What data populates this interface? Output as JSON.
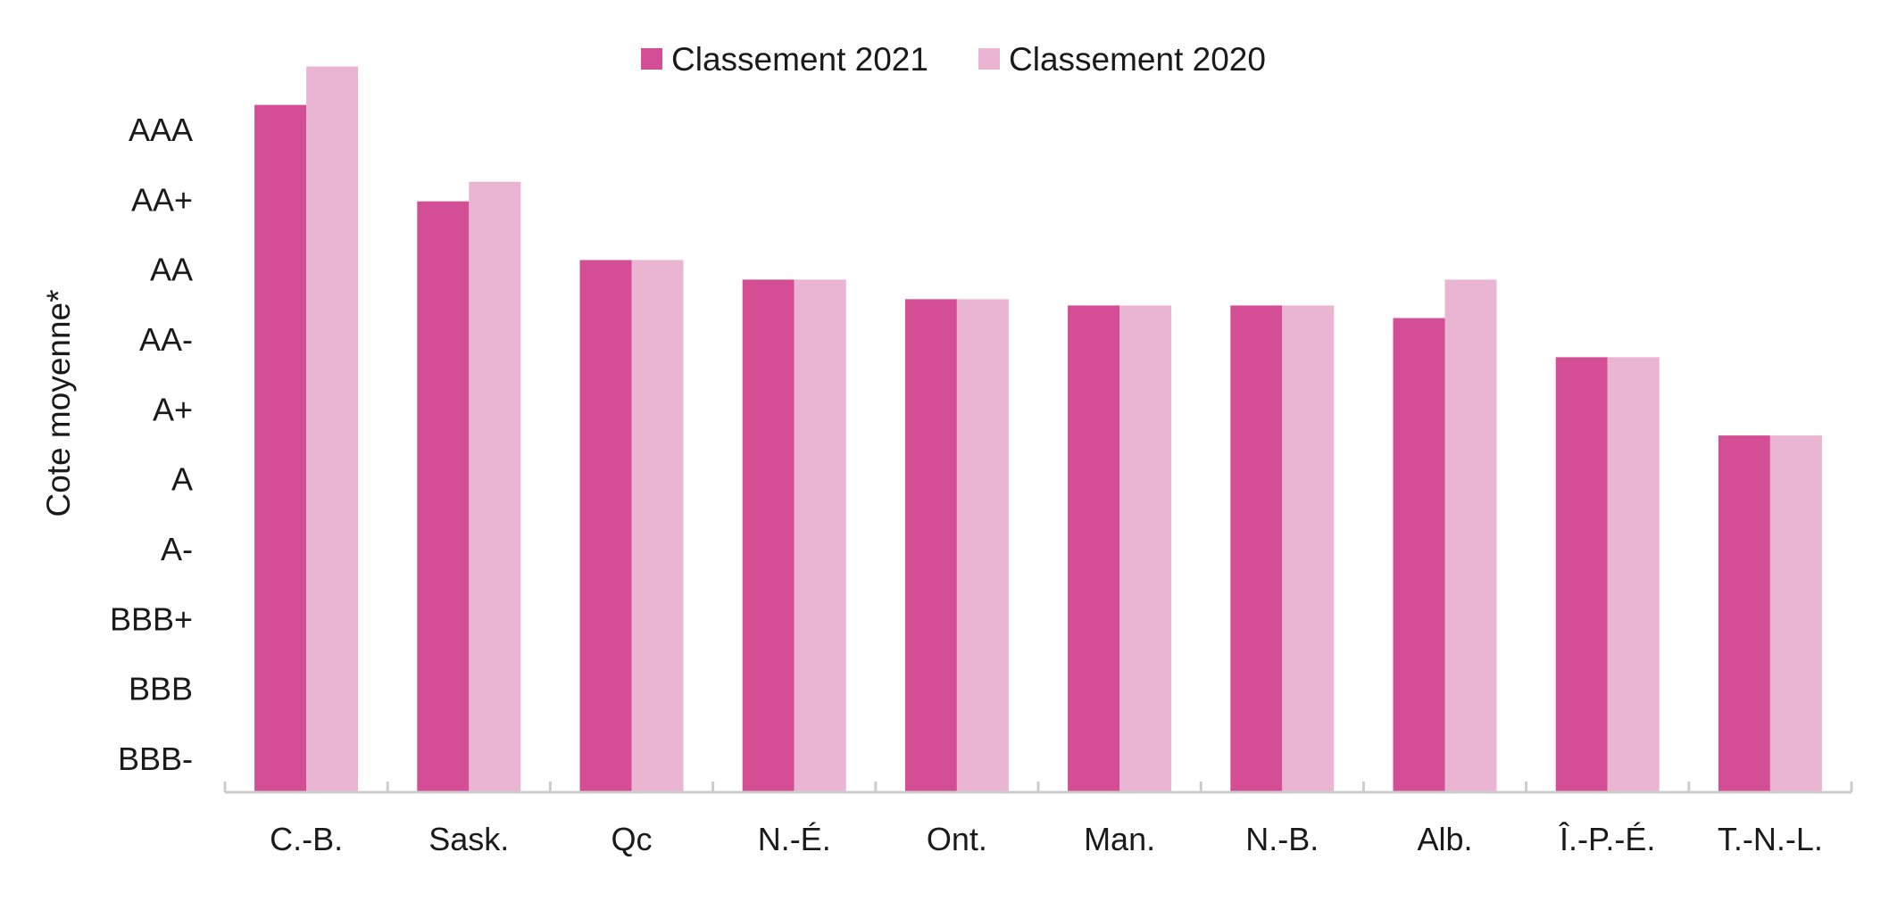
{
  "chart_data": {
    "type": "bar",
    "categories": [
      "C.-B.",
      "Sask.",
      "Qc",
      "N.-É.",
      "Ont.",
      "Man.",
      "N.-B.",
      "Alb.",
      "Î.-P.-É.",
      "T.-N.-L."
    ],
    "series": [
      {
        "name": "Classement 2021",
        "values": [
          9.35,
          7.97,
          7.13,
          6.85,
          6.57,
          6.48,
          6.48,
          6.3,
          5.74,
          4.62
        ]
      },
      {
        "name": "Classement 2020",
        "values": [
          9.9,
          8.25,
          7.13,
          6.85,
          6.57,
          6.48,
          6.48,
          6.85,
          5.74,
          4.62
        ]
      }
    ],
    "y_tick_values": [
      0,
      1,
      2,
      3,
      4,
      5,
      6,
      7,
      8,
      9
    ],
    "y_tick_labels": [
      "BBB-",
      "BBB",
      "BBB+",
      "A-",
      "A",
      "A+",
      "AA-",
      "AA",
      "AA+",
      "AAA"
    ],
    "ylabel": "Cote moyenne*",
    "xlabel": "",
    "title": "",
    "ylim": [
      -0.48,
      10.1
    ],
    "colors": [
      "#d44e95",
      "#eab5d2"
    ],
    "axis_color": "#cccccc",
    "legend_position": "top-center",
    "grid": false
  }
}
